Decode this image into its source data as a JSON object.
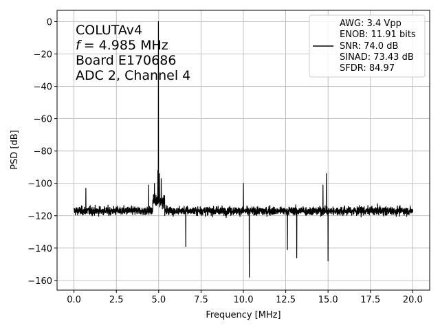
{
  "chart_data": {
    "type": "line",
    "title": "",
    "xlabel": "Frequency [MHz]",
    "ylabel": "PSD [dB]",
    "xlim": [
      -1.0,
      21.0
    ],
    "ylim": [
      -166,
      7
    ],
    "xticks": [
      0.0,
      2.5,
      5.0,
      7.5,
      10.0,
      12.5,
      15.0,
      17.5,
      20.0
    ],
    "xtick_labels": [
      "0.0",
      "2.5",
      "5.0",
      "7.5",
      "10.0",
      "12.5",
      "15.0",
      "17.5",
      "20.0"
    ],
    "yticks": [
      0,
      -20,
      -40,
      -60,
      -80,
      -100,
      -120,
      -140,
      -160
    ],
    "ytick_labels": [
      "0",
      "−20",
      "−40",
      "−60",
      "−80",
      "−100",
      "−120",
      "−140",
      "−160"
    ],
    "grid": true,
    "annotation_lines": [
      "COLUTAv4",
      "= 4.985 MHz",
      "Board E170686",
      "ADC 2, Channel 4"
    ],
    "annotation_freq_symbol": "f",
    "legend": {
      "placement": "top-right",
      "lines": [
        "AWG: 3.4 Vpp",
        "ENOB: 11.91 bits",
        "SNR: 74.0 dB",
        "SINAD: 73.43 dB",
        "SFDR: 84.97"
      ]
    },
    "series": [
      {
        "color": "#000000",
        "noise_floor_db": -117,
        "noise_range_db": [
          -130,
          -107
        ],
        "x_range": [
          0.0,
          20.0
        ],
        "peaks": [
          {
            "x": 4.985,
            "y": 0
          },
          {
            "x": 4.95,
            "y": -92
          },
          {
            "x": 5.05,
            "y": -94
          },
          {
            "x": 5.15,
            "y": -97
          },
          {
            "x": 4.75,
            "y": -100
          },
          {
            "x": 4.4,
            "y": -101
          },
          {
            "x": 0.7,
            "y": -103
          },
          {
            "x": 10.0,
            "y": -100
          },
          {
            "x": 14.9,
            "y": -94
          },
          {
            "x": 14.7,
            "y": -101
          },
          {
            "x": 10.35,
            "y": -158
          },
          {
            "x": 15.0,
            "y": -148
          },
          {
            "x": 13.15,
            "y": -146
          },
          {
            "x": 12.6,
            "y": -141
          },
          {
            "x": 6.6,
            "y": -139
          }
        ]
      }
    ]
  }
}
